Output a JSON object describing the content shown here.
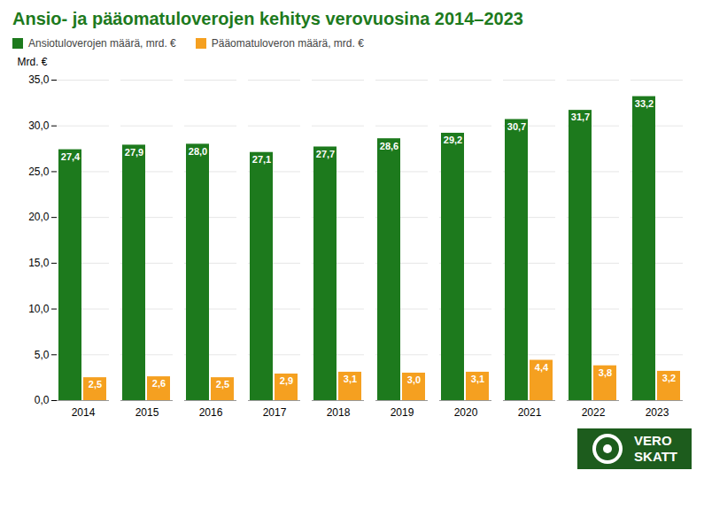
{
  "chart_data": {
    "type": "bar",
    "title": "Ansio- ja pääomatuloverojen kehitys verovuosina 2014–2023",
    "title_color": "#1d7a1d",
    "ylabel": "Mrd. €",
    "categories": [
      "2014",
      "2015",
      "2016",
      "2017",
      "2018",
      "2019",
      "2020",
      "2021",
      "2022",
      "2023"
    ],
    "series": [
      {
        "name": "Ansiotuloverojen määrä, mrd. €",
        "color": "#1d7a1d",
        "values": [
          27.4,
          27.9,
          28.0,
          27.1,
          27.7,
          28.6,
          29.2,
          30.7,
          31.7,
          33.2
        ],
        "value_labels": [
          "27,4",
          "27,9",
          "28,0",
          "27,1",
          "27,7",
          "28,6",
          "29,2",
          "30,7",
          "31,7",
          "33,2"
        ]
      },
      {
        "name": "Pääomatuloveron määrä, mrd. €",
        "color": "#f5a020",
        "values": [
          2.5,
          2.6,
          2.5,
          2.9,
          3.1,
          3.0,
          3.1,
          4.4,
          3.8,
          3.2
        ],
        "value_labels": [
          "2,5",
          "2,6",
          "2,5",
          "2,9",
          "3,1",
          "3,0",
          "3,1",
          "4,4",
          "3,8",
          "3,2"
        ]
      }
    ],
    "ylim": [
      0,
      35
    ],
    "yticks": [
      {
        "value": 0,
        "label": "0,0"
      },
      {
        "value": 5,
        "label": "5,0"
      },
      {
        "value": 10,
        "label": "10,0"
      },
      {
        "value": 15,
        "label": "15,0"
      },
      {
        "value": 20,
        "label": "20,0"
      },
      {
        "value": 25,
        "label": "25,0"
      },
      {
        "value": 30,
        "label": "30,0"
      },
      {
        "value": 35,
        "label": "35,0"
      }
    ],
    "grid": true,
    "legend": "upper left",
    "data_labels": true,
    "annotations": [
      "VERO",
      "SKATT"
    ]
  }
}
